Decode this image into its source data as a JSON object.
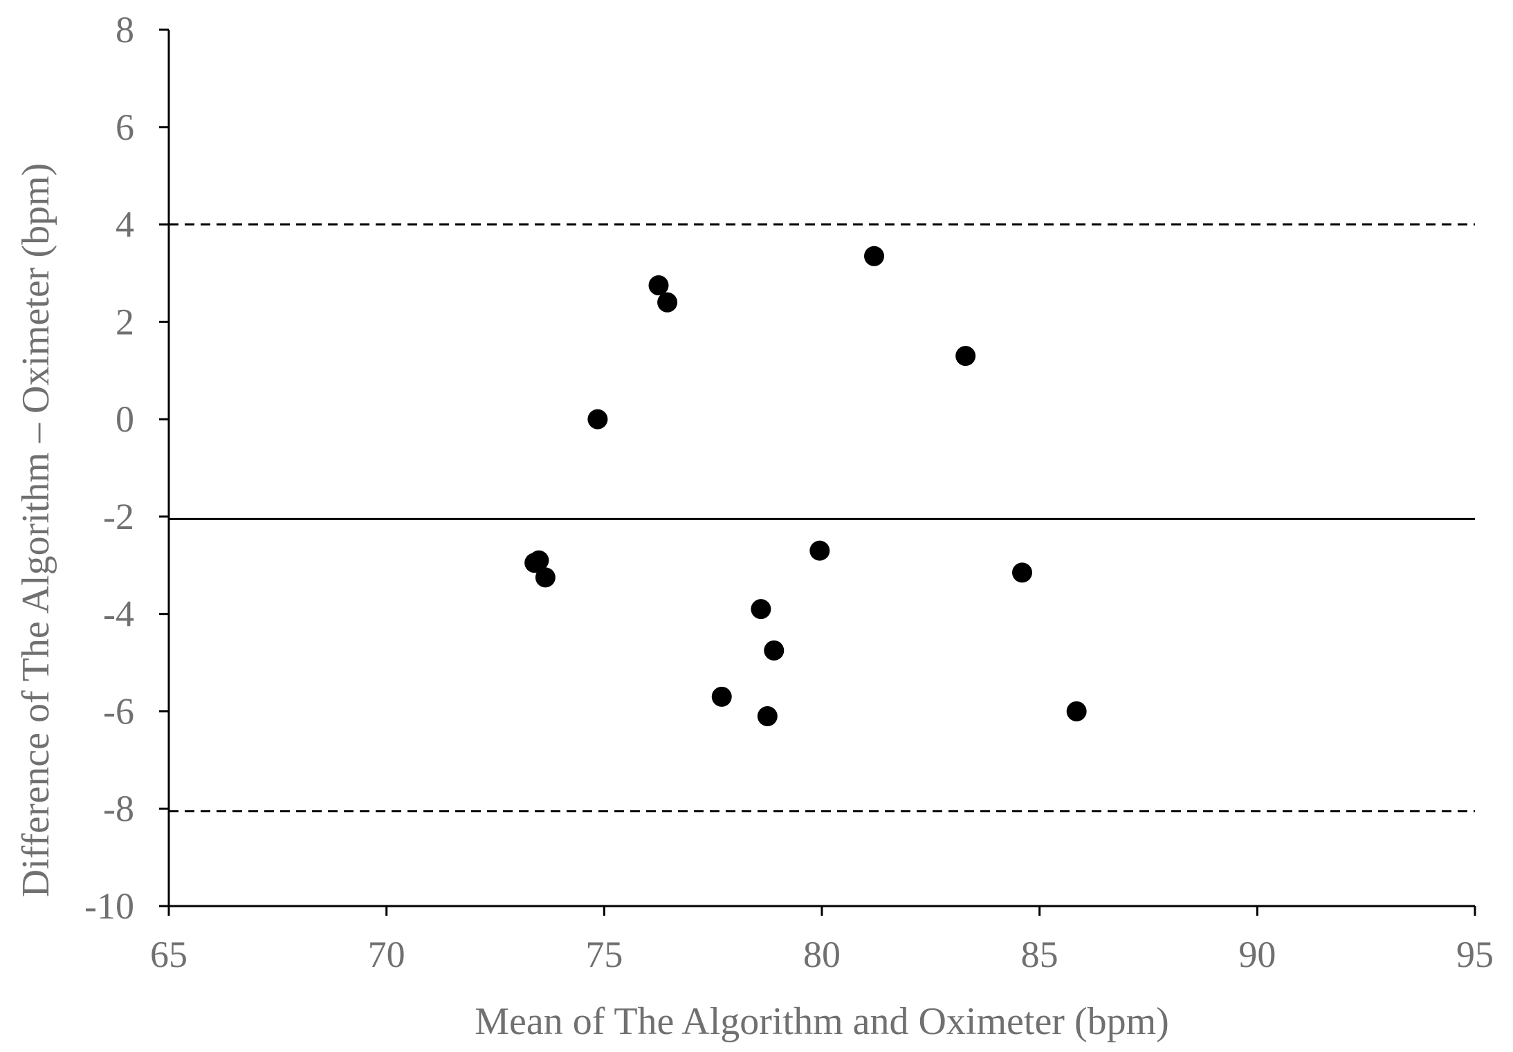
{
  "chart_data": {
    "type": "scatter",
    "title": "",
    "xlabel": "Mean of The Algorithm and Oximeter (bpm)",
    "ylabel": "Difference of The Algorithm – Oximeter (bpm)",
    "xlim": [
      65,
      95
    ],
    "ylim": [
      -10,
      8
    ],
    "xticks": [
      65,
      70,
      75,
      80,
      85,
      90,
      95
    ],
    "yticks": [
      -10,
      -8,
      -6,
      -4,
      -2,
      0,
      2,
      4,
      6,
      8
    ],
    "grid": false,
    "legend": "none",
    "marker_color": "#000000",
    "reference_lines": [
      {
        "kind": "mean",
        "style": "solid",
        "y": -2.05
      },
      {
        "kind": "upper-limit",
        "style": "dashed",
        "y": 4.0
      },
      {
        "kind": "lower-limit",
        "style": "dashed",
        "y": -8.05
      }
    ],
    "series": [
      {
        "points": [
          {
            "x": 73.4,
            "y": -2.95
          },
          {
            "x": 73.5,
            "y": -2.9
          },
          {
            "x": 73.65,
            "y": -3.25
          },
          {
            "x": 74.85,
            "y": 0.0
          },
          {
            "x": 76.25,
            "y": 2.75
          },
          {
            "x": 76.45,
            "y": 2.4
          },
          {
            "x": 77.7,
            "y": -5.7
          },
          {
            "x": 78.6,
            "y": -3.9
          },
          {
            "x": 78.75,
            "y": -6.1
          },
          {
            "x": 78.9,
            "y": -4.75
          },
          {
            "x": 79.95,
            "y": -2.7
          },
          {
            "x": 81.2,
            "y": 3.35
          },
          {
            "x": 83.3,
            "y": 1.3
          },
          {
            "x": 84.6,
            "y": -3.15
          },
          {
            "x": 85.85,
            "y": -6.0
          }
        ]
      }
    ]
  }
}
